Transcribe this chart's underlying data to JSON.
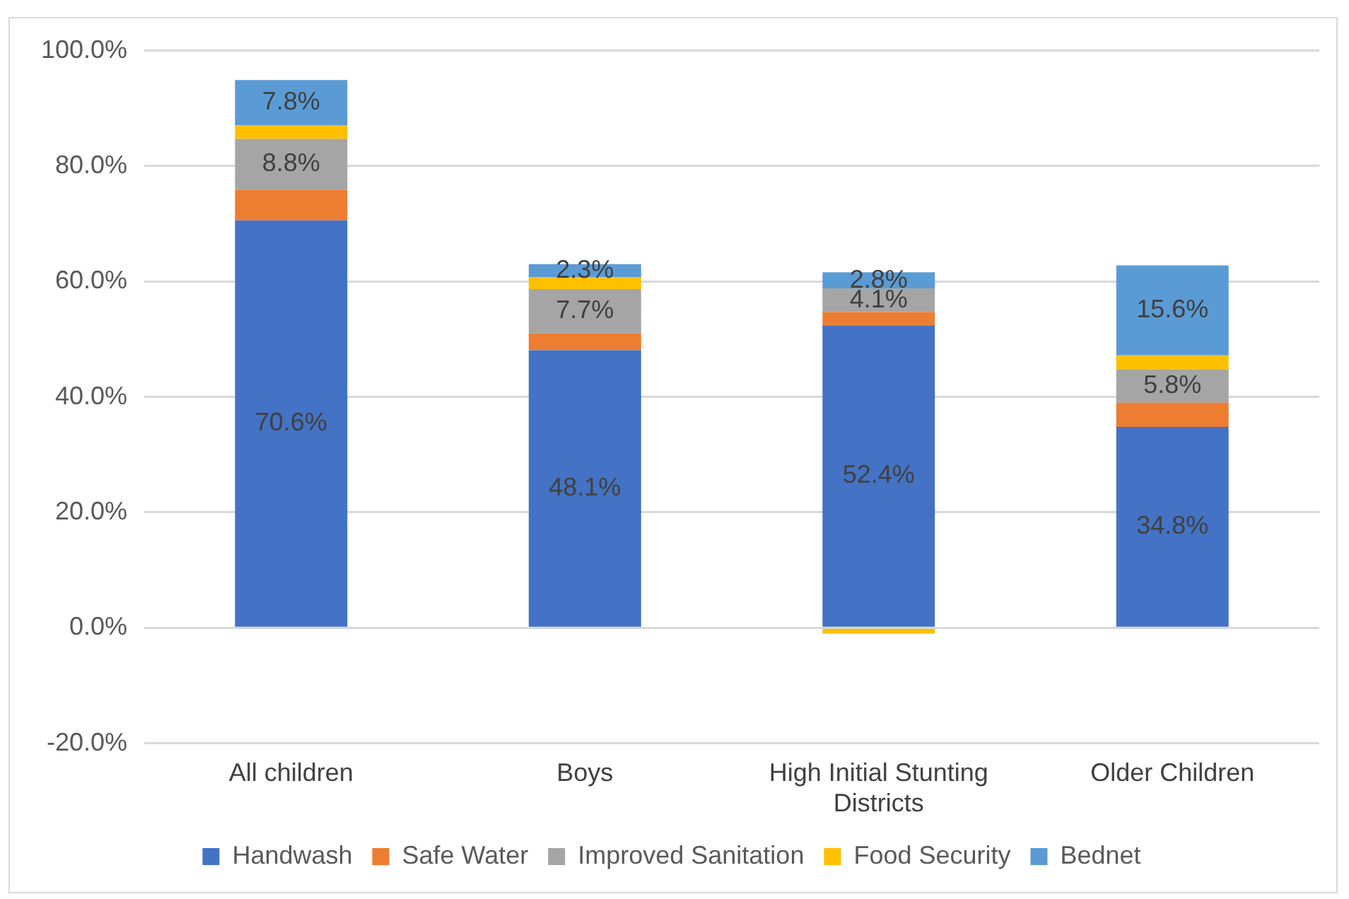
{
  "chart_data": {
    "type": "bar",
    "stacked": true,
    "categories": [
      "All children",
      "Boys",
      "High Initial Stunting Districts",
      "Older Children"
    ],
    "series": [
      {
        "name": "Handwash",
        "color": "#4472c4",
        "values": [
          70.6,
          48.1,
          52.4,
          34.8
        ],
        "value_labels": [
          "70.6%",
          "48.1%",
          "52.4%",
          "34.8%"
        ]
      },
      {
        "name": "Safe Water",
        "color": "#ed7d31",
        "values": [
          5.3,
          2.9,
          2.3,
          4.2
        ],
        "value_labels": [
          null,
          null,
          null,
          null
        ]
      },
      {
        "name": "Improved Sanitation",
        "color": "#a5a5a5",
        "values": [
          8.8,
          7.7,
          4.1,
          5.8
        ],
        "value_labels": [
          "8.8%",
          "7.7%",
          "4.1%",
          "5.8%"
        ]
      },
      {
        "name": "Food Security",
        "color": "#ffc000",
        "values": [
          2.4,
          2.0,
          -1.0,
          2.4
        ],
        "value_labels": [
          null,
          null,
          null,
          null
        ]
      },
      {
        "name": "Bednet",
        "color": "#5b9bd5",
        "values": [
          7.8,
          2.3,
          2.8,
          15.6
        ],
        "value_labels": [
          "7.8%",
          "2.3%",
          "2.8%",
          "15.6%"
        ]
      }
    ],
    "ylim": [
      -20,
      100
    ],
    "yticks": [
      {
        "value": -20,
        "label": "-20.0%"
      },
      {
        "value": 0,
        "label": "0.0%"
      },
      {
        "value": 20,
        "label": "20.0%"
      },
      {
        "value": 40,
        "label": "40.0%"
      },
      {
        "value": 60,
        "label": "60.0%"
      },
      {
        "value": 80,
        "label": "80.0%"
      },
      {
        "value": 100,
        "label": "100.0%"
      }
    ],
    "grid": "y",
    "legend": "bottom"
  }
}
